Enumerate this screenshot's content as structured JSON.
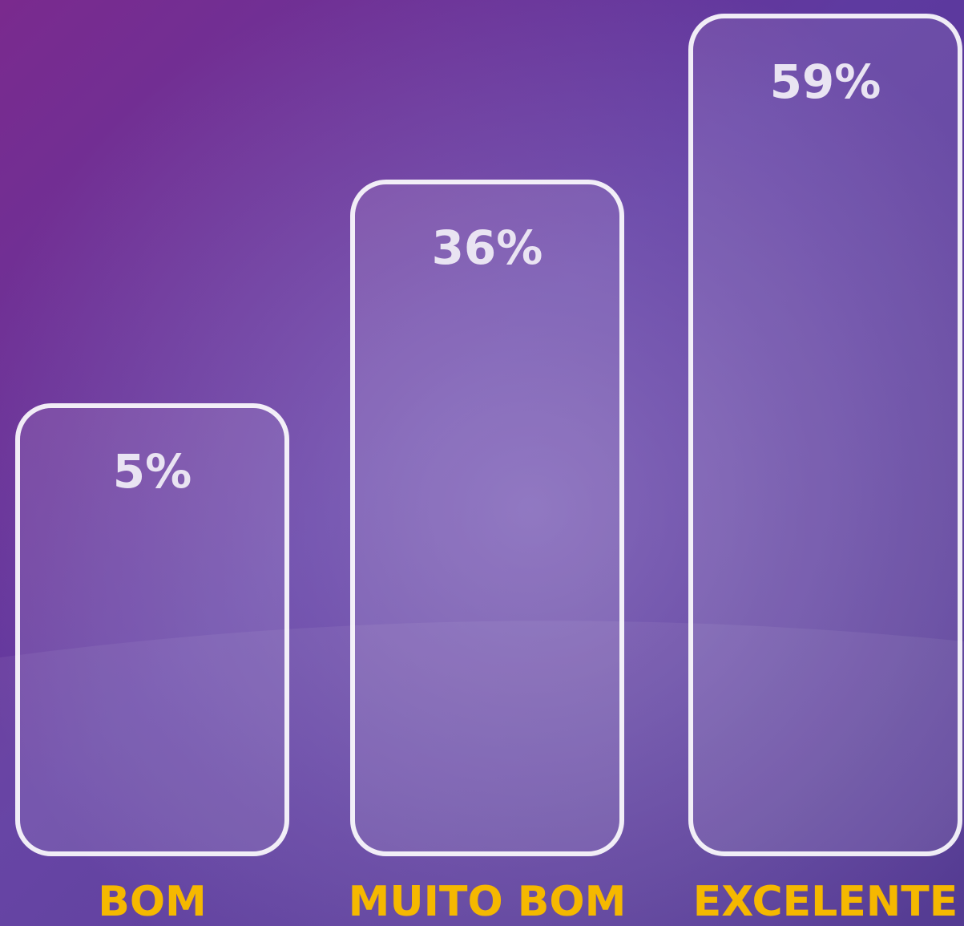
{
  "chart_data": {
    "type": "bar",
    "categories": [
      "BOM",
      "MUITO BOM",
      "EXCELENTE"
    ],
    "values": [
      5,
      36,
      59
    ],
    "value_labels": [
      "5%",
      "36%",
      "59%"
    ],
    "color": "#ffffff",
    "label_color": "#f5b800"
  }
}
